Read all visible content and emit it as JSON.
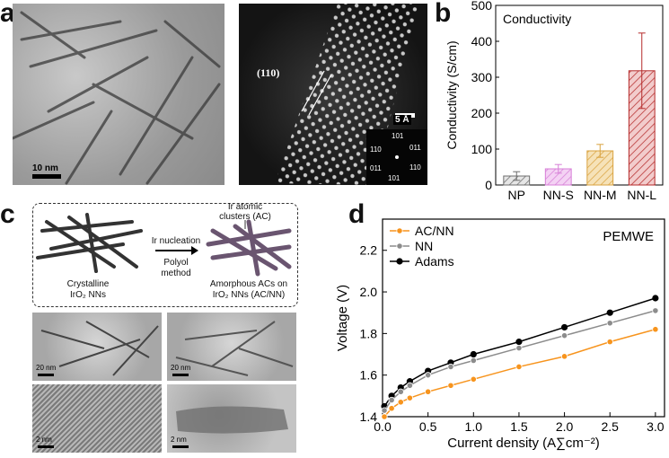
{
  "panel_labels": {
    "a": "a",
    "b": "b",
    "c": "c",
    "d": "d"
  },
  "panel_a": {
    "tem_scale": "10 nm",
    "stem_plane": "(110)",
    "stem_scale": "5 Å",
    "fft_spots": [
      "101",
      "110",
      "011",
      "011",
      "110",
      "101"
    ]
  },
  "panel_c": {
    "left_caption_line1": "Crystalline",
    "left_caption_line2": "IrO₂ NNs",
    "arrow_top": "Ir nucleation",
    "arrow_bottom_line1": "Polyol",
    "arrow_bottom_line2": "method",
    "cluster_label_line1": "Ir atomic",
    "cluster_label_line2": "clusters (AC)",
    "right_caption_line1": "Amorphous ACs on",
    "right_caption_line2": "IrO₂ NNs (AC/NN)",
    "scale_20nm_left": "20 nm",
    "scale_20nm_right": "20 nm",
    "scale_2nm_left": "2 nm",
    "scale_2nm_right": "2 nm"
  },
  "chart_data": [
    {
      "type": "bar",
      "panel": "b",
      "title": "Conductivity",
      "ylabel": "Conductivity (S/cm)",
      "categories": [
        "NP",
        "NN-S",
        "NN-M",
        "NN-L"
      ],
      "values": [
        25,
        45,
        95,
        318
      ],
      "errors": [
        12,
        12,
        18,
        105
      ],
      "ylim": [
        0,
        500
      ],
      "yticks": [
        0,
        100,
        200,
        300,
        400,
        500
      ],
      "colors": [
        "#6d6d6d",
        "#d77fd7",
        "#d9a23e",
        "#b52a2a"
      ],
      "fills": [
        "#e6e6e6",
        "#f4d2f4",
        "#f6e2b8",
        "#f2cccc"
      ]
    },
    {
      "type": "line",
      "panel": "d",
      "title": "PEMWE",
      "xlabel": "Current density (A∑cm⁻²)",
      "ylabel": "Voltage (V)",
      "xlim": [
        0,
        3.1
      ],
      "ylim": [
        1.4,
        2.35
      ],
      "xticks": [
        0.0,
        0.5,
        1.0,
        1.5,
        2.0,
        2.5,
        3.0
      ],
      "xtick_labels": [
        "0.0",
        "0.5",
        "1.0",
        "1.5",
        "2.0",
        "2.5",
        "3.0"
      ],
      "yticks": [
        1.4,
        1.6,
        1.8,
        2.0,
        2.2
      ],
      "ytick_labels": [
        "1.4",
        "1.6",
        "1.8",
        "2.0",
        "2.2"
      ],
      "legend": "top-left",
      "series": [
        {
          "name": "AC/NN",
          "color": "#f7941d",
          "x": [
            0.02,
            0.1,
            0.2,
            0.3,
            0.5,
            0.75,
            1.0,
            1.5,
            2.0,
            2.5,
            3.0
          ],
          "y": [
            1.4,
            1.44,
            1.47,
            1.49,
            1.52,
            1.55,
            1.58,
            1.64,
            1.69,
            1.76,
            1.82
          ]
        },
        {
          "name": "NN",
          "color": "#8c8c8c",
          "x": [
            0.02,
            0.1,
            0.2,
            0.3,
            0.5,
            0.75,
            1.0,
            1.5,
            2.0,
            2.5,
            3.0
          ],
          "y": [
            1.43,
            1.48,
            1.52,
            1.55,
            1.6,
            1.64,
            1.67,
            1.73,
            1.79,
            1.85,
            1.91
          ]
        },
        {
          "name": "Adams",
          "color": "#000000",
          "x": [
            0.02,
            0.1,
            0.2,
            0.3,
            0.5,
            0.75,
            1.0,
            1.5,
            2.0,
            2.5,
            3.0
          ],
          "y": [
            1.45,
            1.5,
            1.54,
            1.57,
            1.62,
            1.66,
            1.7,
            1.76,
            1.83,
            1.9,
            1.97
          ]
        }
      ]
    }
  ]
}
